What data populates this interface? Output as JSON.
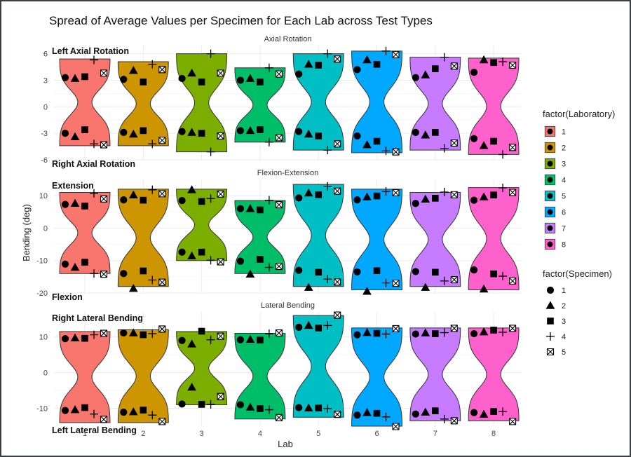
{
  "chart_data": {
    "type": "violin",
    "title": "Spread of Average Values per Specimen for Each Lab across Test Types",
    "xlabel": "Lab",
    "ylabel": "Bending (deg)",
    "categories": [
      "1",
      "2",
      "3",
      "4",
      "5",
      "6",
      "7",
      "8"
    ],
    "grid": true,
    "legend_position": "right",
    "colors": {
      "1": "#F8766D",
      "2": "#CD9600",
      "3": "#7CAE00",
      "4": "#00BE67",
      "5": "#00BFC4",
      "6": "#00A9FF",
      "7": "#C77CFF",
      "8": "#FF61CC"
    },
    "legends": {
      "laboratory": {
        "title": "factor(Laboratory)",
        "items": [
          "1",
          "2",
          "3",
          "4",
          "5",
          "6",
          "7",
          "8"
        ]
      },
      "specimen": {
        "title": "factor(Specimen)",
        "items": [
          {
            "label": "1",
            "shape": "circle"
          },
          {
            "label": "2",
            "shape": "triangle"
          },
          {
            "label": "3",
            "shape": "square"
          },
          {
            "label": "4",
            "shape": "plus"
          },
          {
            "label": "5",
            "shape": "boxed-x"
          }
        ]
      }
    },
    "panels": [
      {
        "strip": "Axial Rotation",
        "ylim": [
          -6,
          7
        ],
        "yticks": [
          -6,
          -3,
          0,
          3,
          6
        ],
        "annotations": {
          "top": "Left Axial  Rotation",
          "bottom": "Right Axial  Rotation"
        },
        "violins": [
          {
            "lab": "1",
            "min": -4.4,
            "max": 5.4
          },
          {
            "lab": "2",
            "min": -4.4,
            "max": 5.1
          },
          {
            "lab": "3",
            "min": -5.1,
            "max": 6.0
          },
          {
            "lab": "4",
            "min": -4.0,
            "max": 4.4
          },
          {
            "lab": "5",
            "min": -4.9,
            "max": 6.0
          },
          {
            "lab": "6",
            "min": -5.2,
            "max": 6.3
          },
          {
            "lab": "7",
            "min": -4.9,
            "max": 5.6
          },
          {
            "lab": "8",
            "min": -5.4,
            "max": 5.5
          }
        ],
        "points": {
          "1": [
            [
              3.3,
              -3.0
            ],
            [
              3.2,
              -3.4
            ],
            [
              3.4,
              -2.6
            ],
            [
              5.3,
              -4.2
            ],
            [
              3.8,
              -4.3
            ]
          ],
          "2": [
            [
              3.1,
              -2.9
            ],
            [
              4.1,
              -3.1
            ],
            [
              2.8,
              -2.7
            ],
            [
              4.8,
              -4.2
            ],
            [
              4.2,
              -3.8
            ]
          ],
          "3": [
            [
              3.2,
              -2.8
            ],
            [
              3.8,
              -2.9
            ],
            [
              2.8,
              -3.0
            ],
            [
              6.0,
              -5.1
            ],
            [
              3.8,
              -3.3
            ]
          ],
          "4": [
            [
              3.0,
              -2.7
            ],
            [
              3.2,
              -2.7
            ],
            [
              2.8,
              -2.6
            ],
            [
              4.4,
              -4.0
            ],
            [
              3.7,
              -3.5
            ]
          ],
          "5": [
            [
              3.7,
              -2.8
            ],
            [
              4.8,
              -3.1
            ],
            [
              4.7,
              -3.3
            ],
            [
              6.0,
              -4.9
            ],
            [
              5.4,
              -4.2
            ]
          ],
          "6": [
            [
              4.2,
              -3.3
            ],
            [
              5.3,
              -4.3
            ],
            [
              4.8,
              -3.9
            ],
            [
              6.3,
              -5.0
            ],
            [
              5.9,
              -5.1
            ]
          ],
          "7": [
            [
              3.3,
              -2.9
            ],
            [
              3.6,
              -3.2
            ],
            [
              4.3,
              -2.9
            ],
            [
              5.6,
              -4.7
            ],
            [
              4.6,
              -4.1
            ]
          ],
          "8": [
            [
              3.9,
              -3.6
            ],
            [
              5.3,
              -4.4
            ],
            [
              5.0,
              -3.9
            ],
            [
              5.1,
              -5.4
            ],
            [
              4.7,
              -4.6
            ]
          ]
        }
      },
      {
        "strip": "Flexion-Extension",
        "ylim": [
          -20,
          15
        ],
        "yticks": [
          -20,
          -10,
          0,
          10
        ],
        "annotations": {
          "top": "Extension",
          "bottom": "Flexion"
        },
        "violins": [
          {
            "lab": "1",
            "min": -14.0,
            "max": 11.0
          },
          {
            "lab": "2",
            "min": -18.0,
            "max": 12.0
          },
          {
            "lab": "3",
            "min": -10.0,
            "max": 12.0
          },
          {
            "lab": "4",
            "min": -14.0,
            "max": 8.5
          },
          {
            "lab": "5",
            "min": -18.0,
            "max": 13.5
          },
          {
            "lab": "6",
            "min": -19.0,
            "max": 12.0
          },
          {
            "lab": "7",
            "min": -18.0,
            "max": 11.0
          },
          {
            "lab": "8",
            "min": -19.0,
            "max": 12.5
          }
        ],
        "points": {
          "1": [
            [
              7.3,
              -11.1
            ],
            [
              7.6,
              -12.1
            ],
            [
              6.8,
              -10.5
            ],
            [
              10.7,
              -14.0
            ],
            [
              9.0,
              -14.2
            ]
          ],
          "2": [
            [
              8.7,
              -14.0
            ],
            [
              10.2,
              -18.6
            ],
            [
              8.6,
              -13.2
            ],
            [
              11.8,
              -16.0
            ],
            [
              10.6,
              -16.7
            ]
          ],
          "3": [
            [
              8.5,
              -7.4
            ],
            [
              11.8,
              -8.6
            ],
            [
              8.2,
              -7.4
            ],
            [
              9.1,
              -9.9
            ],
            [
              10.5,
              -10.4
            ]
          ],
          "4": [
            [
              6.0,
              -10.2
            ],
            [
              6.0,
              -14.2
            ],
            [
              5.6,
              -9.6
            ],
            [
              8.6,
              -12.1
            ],
            [
              7.2,
              -11.8
            ]
          ],
          "5": [
            [
              9.3,
              -13.0
            ],
            [
              10.8,
              -18.3
            ],
            [
              10.3,
              -13.6
            ],
            [
              12.9,
              -15.7
            ],
            [
              11.4,
              -16.6
            ]
          ],
          "6": [
            [
              8.7,
              -13.5
            ],
            [
              9.6,
              -19.5
            ],
            [
              9.9,
              -13.1
            ],
            [
              11.3,
              -16.9
            ],
            [
              10.9,
              -17.0
            ]
          ],
          "7": [
            [
              7.6,
              -13.4
            ],
            [
              8.9,
              -18.3
            ],
            [
              9.2,
              -13.6
            ],
            [
              11.1,
              -16.3
            ],
            [
              10.3,
              -15.9
            ]
          ],
          "8": [
            [
              8.6,
              -12.9
            ],
            [
              9.6,
              -18.8
            ],
            [
              10.2,
              -14.1
            ],
            [
              12.4,
              -14.8
            ],
            [
              11.0,
              -16.3
            ]
          ]
        }
      },
      {
        "strip": "Lateral Bending",
        "ylim": [
          -15,
          17
        ],
        "yticks": [
          -10,
          0,
          10
        ],
        "annotations": {
          "top": "Right Lateral Bending",
          "bottom": "Left Lateral Bending"
        },
        "violins": [
          {
            "lab": "1",
            "min": -14.0,
            "max": 11.5
          },
          {
            "lab": "2",
            "min": -14.0,
            "max": 12.0
          },
          {
            "lab": "3",
            "min": -9.0,
            "max": 11.5
          },
          {
            "lab": "4",
            "min": -13.0,
            "max": 11.0
          },
          {
            "lab": "5",
            "min": -12.5,
            "max": 16.0
          },
          {
            "lab": "6",
            "min": -15.0,
            "max": 12.5
          },
          {
            "lab": "7",
            "min": -13.5,
            "max": 12.5
          },
          {
            "lab": "8",
            "min": -13.5,
            "max": 12.5
          }
        ],
        "points": {
          "1": [
            [
              9.5,
              -10.6
            ],
            [
              9.7,
              -10.4
            ],
            [
              9.6,
              -9.8
            ],
            [
              10.6,
              -11.6
            ],
            [
              11.0,
              -13.1
            ]
          ],
          "2": [
            [
              11.1,
              -11.1
            ],
            [
              11.1,
              -11.0
            ],
            [
              10.6,
              -10.5
            ],
            [
              10.9,
              -11.9
            ],
            [
              12.2,
              -13.7
            ]
          ],
          "3": [
            [
              9.0,
              -8.8
            ],
            [
              8.0,
              -4.1
            ],
            [
              11.6,
              -8.9
            ],
            [
              9.2,
              -8.9
            ],
            [
              10.2,
              -6.7
            ]
          ],
          "4": [
            [
              9.2,
              -9.0
            ],
            [
              9.3,
              -9.7
            ],
            [
              9.1,
              -10.1
            ],
            [
              10.9,
              -10.4
            ],
            [
              11.1,
              -12.6
            ]
          ],
          "5": [
            [
              12.7,
              -9.8
            ],
            [
              13.2,
              -9.9
            ],
            [
              12.5,
              -9.9
            ],
            [
              13.2,
              -10.1
            ],
            [
              16.1,
              -11.7
            ]
          ],
          "6": [
            [
              10.6,
              -11.9
            ],
            [
              11.2,
              -11.2
            ],
            [
              11.0,
              -11.4
            ],
            [
              10.8,
              -12.4
            ],
            [
              12.3,
              -15.1
            ]
          ],
          "7": [
            [
              10.8,
              -11.6
            ],
            [
              11.1,
              -11.1
            ],
            [
              10.9,
              -10.7
            ],
            [
              11.2,
              -13.0
            ],
            [
              12.4,
              -13.5
            ]
          ],
          "8": [
            [
              10.9,
              -11.2
            ],
            [
              11.4,
              -11.7
            ],
            [
              11.9,
              -10.9
            ],
            [
              11.3,
              -10.9
            ],
            [
              12.4,
              -13.7
            ]
          ]
        }
      }
    ]
  }
}
